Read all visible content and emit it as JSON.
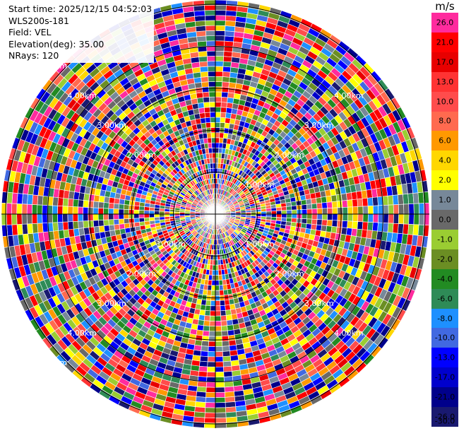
{
  "info": {
    "start_time": "Start time: 2025/12/15 04:52:03",
    "station": "WLS200s-181",
    "field": "Field: VEL",
    "elevation": "Elevation(deg): 35.00",
    "nrays": "NRays: 120"
  },
  "colorbar": {
    "unit": "m/s",
    "bins": [
      {
        "label": "26.0",
        "color": "#ff2b9e"
      },
      {
        "label": "21.0",
        "color": "#ff0000"
      },
      {
        "label": "17.0",
        "color": "#e80000"
      },
      {
        "label": "13.0",
        "color": "#ff3333"
      },
      {
        "label": "10.0",
        "color": "#ff4c4c"
      },
      {
        "label": "8.0",
        "color": "#ff6a4f"
      },
      {
        "label": "6.0",
        "color": "#ff9900"
      },
      {
        "label": "4.0",
        "color": "#ffd700"
      },
      {
        "label": "2.0",
        "color": "#ffff00"
      },
      {
        "label": "1.0",
        "color": "#778899"
      },
      {
        "label": "0.0",
        "color": "#696969"
      },
      {
        "label": "-1.0",
        "color": "#9acd32"
      },
      {
        "label": "-2.0",
        "color": "#6b8e23"
      },
      {
        "label": "-4.0",
        "color": "#228b22"
      },
      {
        "label": "-6.0",
        "color": "#2e8b57"
      },
      {
        "label": "-8.0",
        "color": "#1e90ff"
      },
      {
        "label": "-10.0",
        "color": "#4169e1"
      },
      {
        "label": "-13.0",
        "color": "#0000ff"
      },
      {
        "label": "-17.0",
        "color": "#0000cd"
      },
      {
        "label": "-21.0",
        "color": "#00008b"
      },
      {
        "label": "-26.0",
        "color": "#191970"
      },
      {
        "label": "-30.0",
        "color": ""
      }
    ]
  },
  "chart_data": {
    "type": "heatmap",
    "field": "VEL",
    "elevation_deg": 35.0,
    "nrays": 120,
    "range_rings_km": [
      1.0,
      2.0,
      3.0,
      4.0,
      5.0
    ],
    "ring_label_text": [
      "1.00km",
      "2.00km",
      "3.00km",
      "4.00km",
      "5.00km"
    ],
    "ring_labels_upper_left": [
      "2.00km",
      "3.00km",
      "4.00km",
      "5.00km"
    ],
    "ring_labels_upper_right": [
      "1.00km",
      "2.00km",
      "3.00km",
      "4.00km"
    ],
    "ring_labels_lower_left": [
      "1.00km",
      "2.00km",
      "3.00km",
      "4.00km",
      "5.00km"
    ],
    "ring_labels_lower_right": [
      "1.00km",
      "2.00km",
      "3.00km",
      "4.00km"
    ],
    "max_range_km": 5.0
  }
}
